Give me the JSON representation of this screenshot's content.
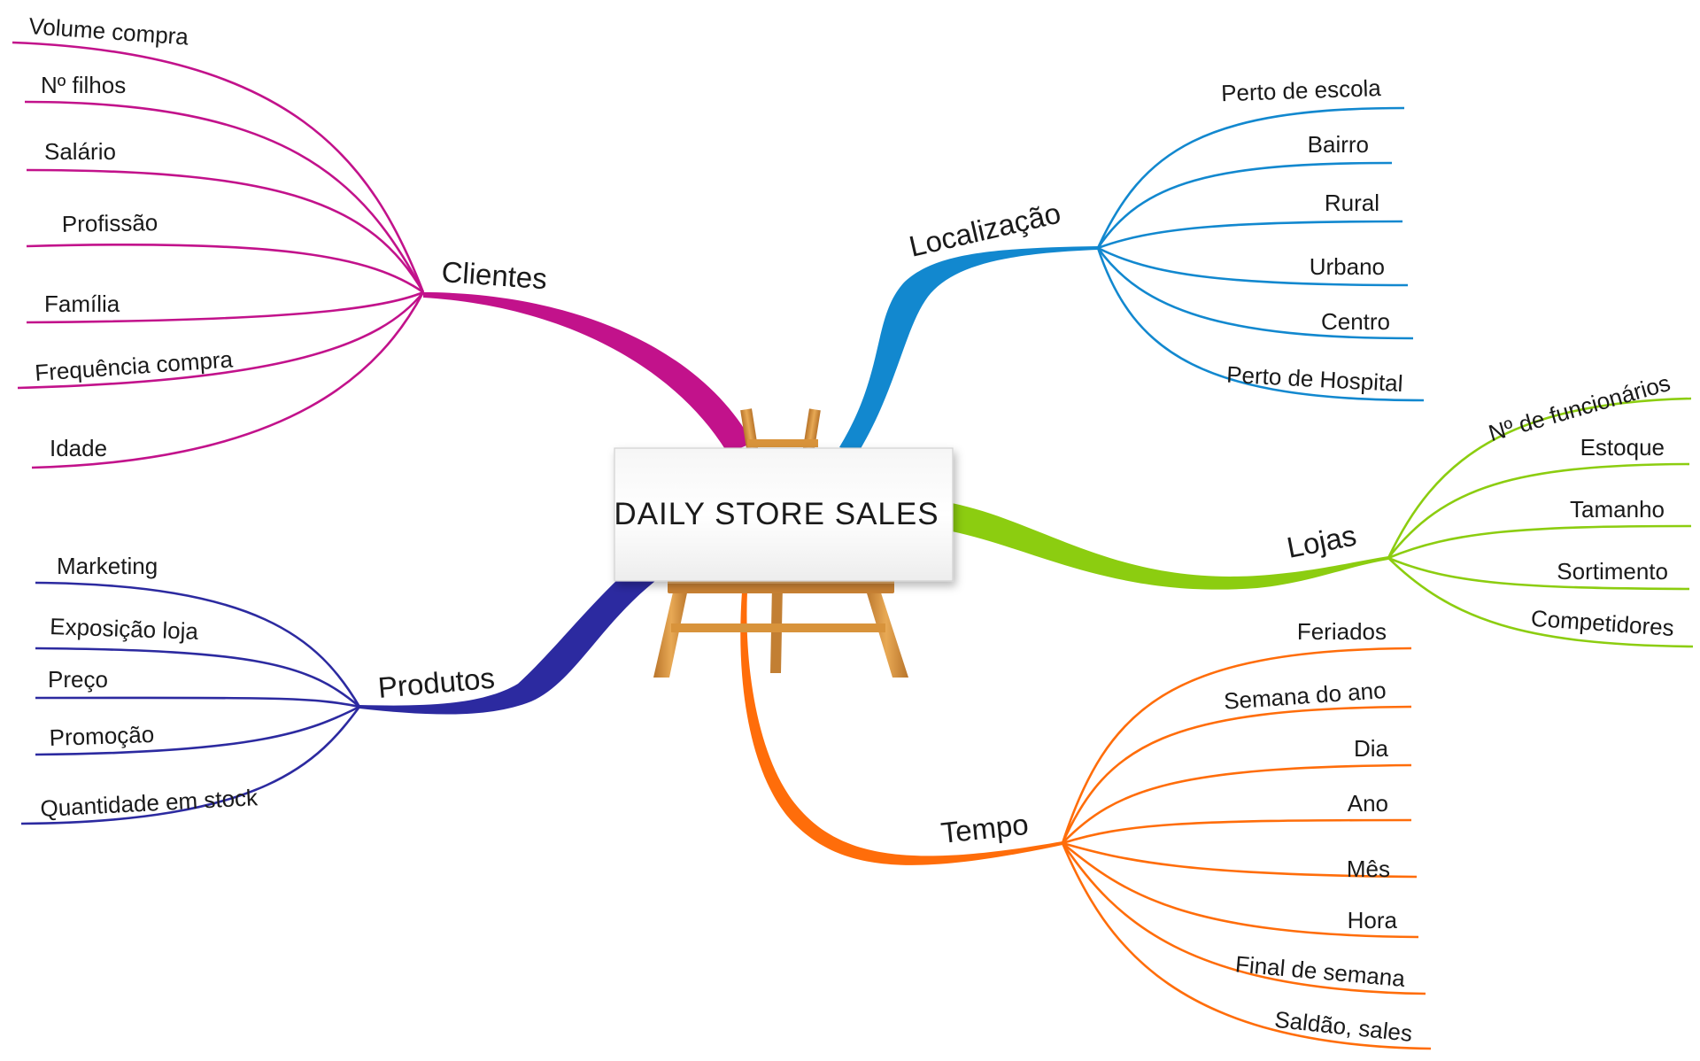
{
  "center": {
    "title": "DAILY STORE SALES"
  },
  "colors": {
    "clientes": "#c2128b",
    "localizacao": "#1288cf",
    "lojas": "#8ccd10",
    "produtos": "#2c2aa0",
    "tempo": "#ff6d0a",
    "wood": "#d8933b"
  },
  "branches": {
    "clientes": {
      "label": "Clientes",
      "items": [
        "Volume compra",
        "Nº filhos",
        "Salário",
        "Profissão",
        "Família",
        "Frequência compra",
        "Idade"
      ]
    },
    "localizacao": {
      "label": "Localização",
      "items": [
        "Perto de escola",
        "Bairro",
        "Rural",
        "Urbano",
        "Centro",
        "Perto de Hospital"
      ]
    },
    "lojas": {
      "label": "Lojas",
      "items": [
        "Nº de funcionários",
        "Estoque",
        "Tamanho",
        "Sortimento",
        "Competidores"
      ]
    },
    "produtos": {
      "label": "Produtos",
      "items": [
        "Marketing",
        "Exposição loja",
        "Preço",
        "Promoção",
        "Quantidade em stock"
      ]
    },
    "tempo": {
      "label": "Tempo",
      "items": [
        "Feriados",
        "Semana do ano",
        "Dia",
        "Ano",
        "Mês",
        "Hora",
        "Final de semana",
        "Saldão, sales"
      ]
    }
  }
}
